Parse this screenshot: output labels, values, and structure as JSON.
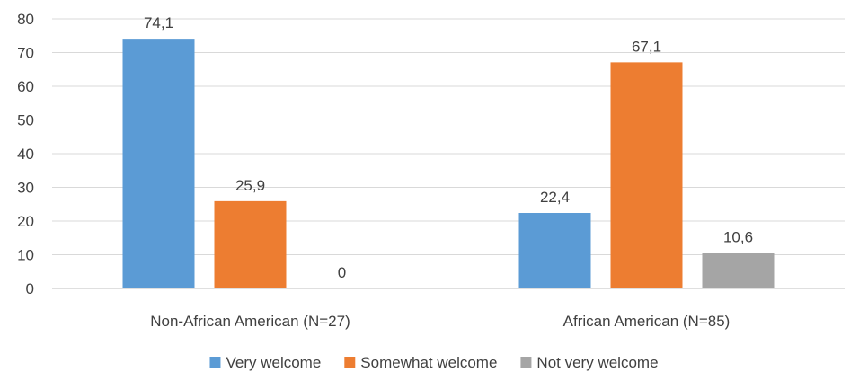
{
  "chart_data": {
    "type": "bar",
    "categories": [
      "Non-African American (N=27)",
      "African American (N=85)"
    ],
    "series": [
      {
        "name": "Very welcome",
        "values": [
          74.1,
          22.4
        ],
        "labels": [
          "74,1",
          "22,4"
        ],
        "color": "#5b9bd5"
      },
      {
        "name": "Somewhat welcome",
        "values": [
          25.9,
          67.1
        ],
        "labels": [
          "25,9",
          "67,1"
        ],
        "color": "#ed7d31"
      },
      {
        "name": "Not very welcome",
        "values": [
          0,
          10.6
        ],
        "labels": [
          "0",
          "10,6"
        ],
        "color": "#a5a5a5"
      }
    ],
    "title": "",
    "xlabel": "",
    "ylabel": "",
    "ylim": [
      0,
      80
    ],
    "yticks": [
      0,
      10,
      20,
      30,
      40,
      50,
      60,
      70,
      80
    ],
    "grid": true,
    "legend_position": "bottom"
  }
}
